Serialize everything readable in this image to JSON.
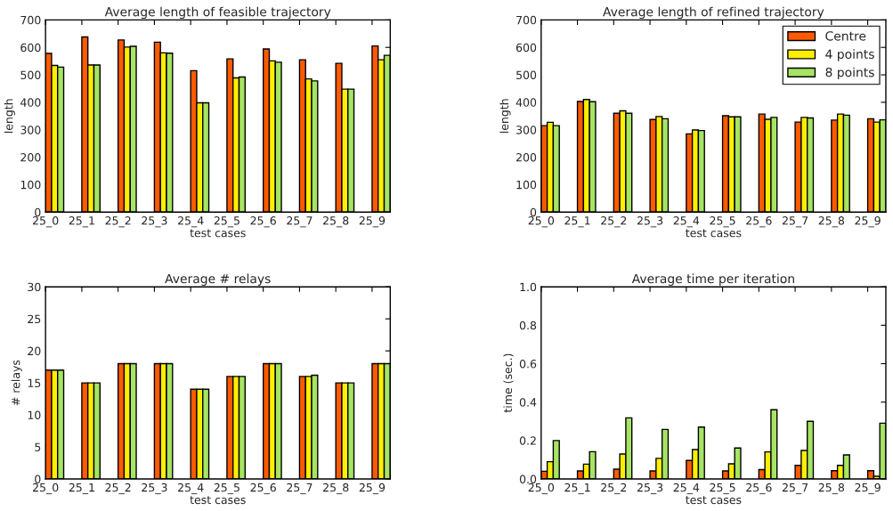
{
  "chart_data": [
    {
      "type": "bar",
      "title": "Average length of feasible trajectory",
      "xlabel": "test cases",
      "ylabel": "length",
      "categories": [
        "25_0",
        "25_1",
        "25_2",
        "25_3",
        "25_4",
        "25_5",
        "25_6",
        "25_7",
        "25_8",
        "25_9"
      ],
      "ylim": [
        0,
        700
      ],
      "yticks": [
        0,
        100,
        200,
        300,
        400,
        500,
        600,
        700
      ],
      "grid": false,
      "legend": false,
      "series": [
        {
          "color": "#ff5a00",
          "values": [
            578,
            638,
            627,
            619,
            515,
            558,
            594,
            555,
            542,
            605
          ]
        },
        {
          "color": "#ffee00",
          "values": [
            534,
            536,
            601,
            580,
            398,
            489,
            551,
            485,
            448,
            555
          ]
        },
        {
          "color": "#a6e463",
          "values": [
            528,
            536,
            604,
            579,
            398,
            492,
            546,
            478,
            448,
            571
          ]
        }
      ]
    },
    {
      "type": "bar",
      "title": "Average length of refined trajectory",
      "xlabel": "test cases",
      "ylabel": "length",
      "categories": [
        "25_0",
        "25_1",
        "25_2",
        "25_3",
        "25_4",
        "25_5",
        "25_6",
        "25_7",
        "25_8",
        "25_9"
      ],
      "ylim": [
        0,
        700
      ],
      "yticks": [
        0,
        100,
        200,
        300,
        400,
        500,
        600,
        700
      ],
      "grid": false,
      "legend": "top right",
      "series": [
        {
          "name": "Centre",
          "color": "#ff5a00",
          "values": [
            315,
            403,
            360,
            337,
            285,
            351,
            357,
            328,
            335,
            340
          ]
        },
        {
          "name": "4 points",
          "color": "#ffee00",
          "values": [
            327,
            410,
            369,
            348,
            299,
            347,
            338,
            345,
            357,
            328
          ]
        },
        {
          "name": "8 points",
          "color": "#a6e463",
          "values": [
            315,
            402,
            360,
            340,
            297,
            347,
            345,
            343,
            353,
            336
          ]
        }
      ]
    },
    {
      "type": "bar",
      "title": "Average # relays",
      "xlabel": "test cases",
      "ylabel": "# relays",
      "categories": [
        "25_0",
        "25_1",
        "25_2",
        "25_3",
        "25_4",
        "25_5",
        "25_6",
        "25_7",
        "25_8",
        "25_9"
      ],
      "ylim": [
        0,
        30
      ],
      "yticks": [
        0,
        5,
        10,
        15,
        20,
        25,
        30
      ],
      "grid": false,
      "legend": false,
      "series": [
        {
          "color": "#ff5a00",
          "values": [
            17,
            15,
            18,
            18,
            14,
            16,
            18,
            16,
            15,
            18
          ]
        },
        {
          "color": "#ffee00",
          "values": [
            17,
            15,
            18,
            18,
            14,
            16,
            18,
            16,
            15,
            18
          ]
        },
        {
          "color": "#a6e463",
          "values": [
            17,
            15,
            18,
            18,
            14,
            16,
            18,
            16.2,
            15,
            18
          ]
        }
      ]
    },
    {
      "type": "bar",
      "title": "Average time per iteration",
      "xlabel": "test cases",
      "ylabel": "time (sec.)",
      "categories": [
        "25_0",
        "25_1",
        "25_2",
        "25_3",
        "25_4",
        "25_5",
        "25_6",
        "25_7",
        "25_8",
        "25_9"
      ],
      "ylim": [
        0,
        1.0
      ],
      "yticks": [
        {
          "value": 0,
          "label": "0.0"
        },
        0.2,
        0.4,
        0.6,
        0.8,
        {
          "value": 1,
          "label": "1.0"
        }
      ],
      "grid": false,
      "legend": false,
      "series": [
        {
          "color": "#ff5a00",
          "values": [
            0.04,
            0.042,
            0.051,
            0.042,
            0.096,
            0.042,
            0.049,
            0.071,
            0.043,
            0.043
          ]
        },
        {
          "color": "#ffee00",
          "values": [
            0.09,
            0.077,
            0.13,
            0.107,
            0.153,
            0.079,
            0.141,
            0.148,
            0.071,
            0.014
          ]
        },
        {
          "color": "#a6e463",
          "values": [
            0.2,
            0.142,
            0.318,
            0.258,
            0.27,
            0.161,
            0.36,
            0.3,
            0.125,
            0.29
          ]
        }
      ]
    }
  ]
}
